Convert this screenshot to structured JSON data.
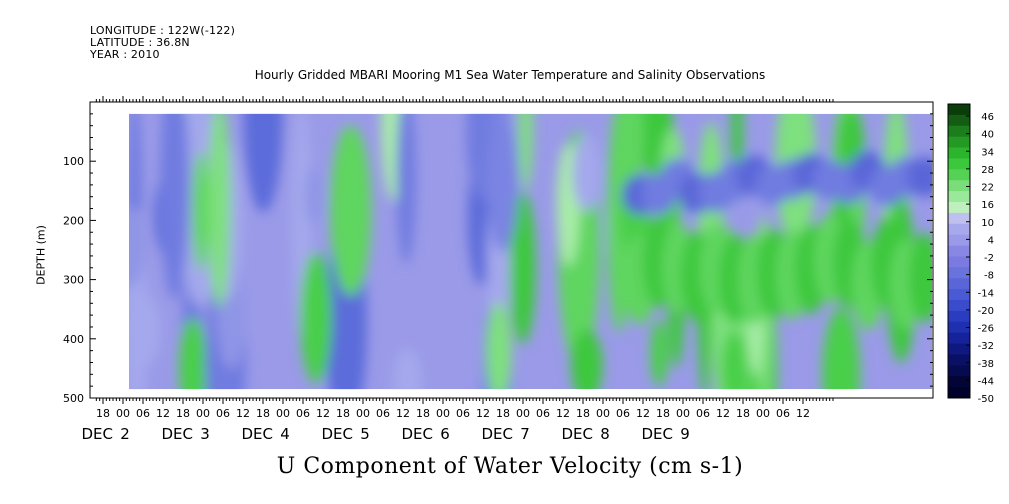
{
  "header": {
    "longitude": "LONGITUDE : 122W(-122)",
    "latitude": "LATITUDE : 36.8N",
    "year": "YEAR : 2010"
  },
  "chart_data": {
    "type": "heatmap",
    "title": "Hourly Gridded MBARI Mooring M1 Sea Water Temperature and Salinity Observations",
    "xlabel": "U Component of Water Velocity (cm s-1)",
    "ylabel": "DEPTH (m)",
    "y_axis": {
      "range": [
        500,
        0
      ],
      "ticks": [
        100,
        200,
        300,
        400,
        500
      ],
      "data_range": [
        20,
        485
      ]
    },
    "x_axis": {
      "hour_ticks": [
        "18",
        "00",
        "06",
        "12",
        "18",
        "00",
        "06",
        "12",
        "18",
        "00",
        "06",
        "12",
        "18",
        "00",
        "06",
        "12",
        "18",
        "00",
        "06",
        "12",
        "18",
        "00",
        "06",
        "12",
        "18",
        "00",
        "06",
        "12",
        "18",
        "00",
        "06",
        "12",
        "18",
        "00",
        "06",
        "12"
      ],
      "start_hour": 18,
      "step_hours": 6,
      "day_labels": [
        {
          "month": "DEC",
          "day": "2",
          "hour_index": 1
        },
        {
          "month": "DEC",
          "day": "3",
          "hour_index": 5
        },
        {
          "month": "DEC",
          "day": "4",
          "hour_index": 9
        },
        {
          "month": "DEC",
          "day": "5",
          "hour_index": 13
        },
        {
          "month": "DEC",
          "day": "6",
          "hour_index": 17
        },
        {
          "month": "DEC",
          "day": "7",
          "hour_index": 21
        },
        {
          "month": "DEC",
          "day": "8",
          "hour_index": 25
        },
        {
          "month": "DEC",
          "day": "9",
          "hour_index": 29
        }
      ]
    },
    "colorbar": {
      "labels": [
        "46",
        "40",
        "34",
        "28",
        "22",
        "16",
        "10",
        "4",
        "-2",
        "-8",
        "-14",
        "-20",
        "-26",
        "-32",
        "-38",
        "-44",
        "-50"
      ],
      "colors_high": [
        "#0b3d0b",
        "#145c14",
        "#1c7d1c",
        "#249a24",
        "#2cb52c",
        "#3cc83c",
        "#55d255",
        "#79de79",
        "#9ae89a",
        "#bdf0bd"
      ],
      "colors_low": [
        "#c0c0f0",
        "#a8a8ec",
        "#9a9ae8",
        "#8888e4",
        "#7a7ae0",
        "#6a72dc",
        "#5a66d8",
        "#4a5ad4",
        "#3a4ccc",
        "#2a3cc0",
        "#1e2fb0",
        "#15229a",
        "#0e1880",
        "#0a1066",
        "#060a4e",
        "#030536",
        "#01022a"
      ]
    },
    "colors": {
      "negative": "#9a9ae8",
      "positive": "#5fd65f",
      "neutral": "#c8f0c8"
    }
  }
}
